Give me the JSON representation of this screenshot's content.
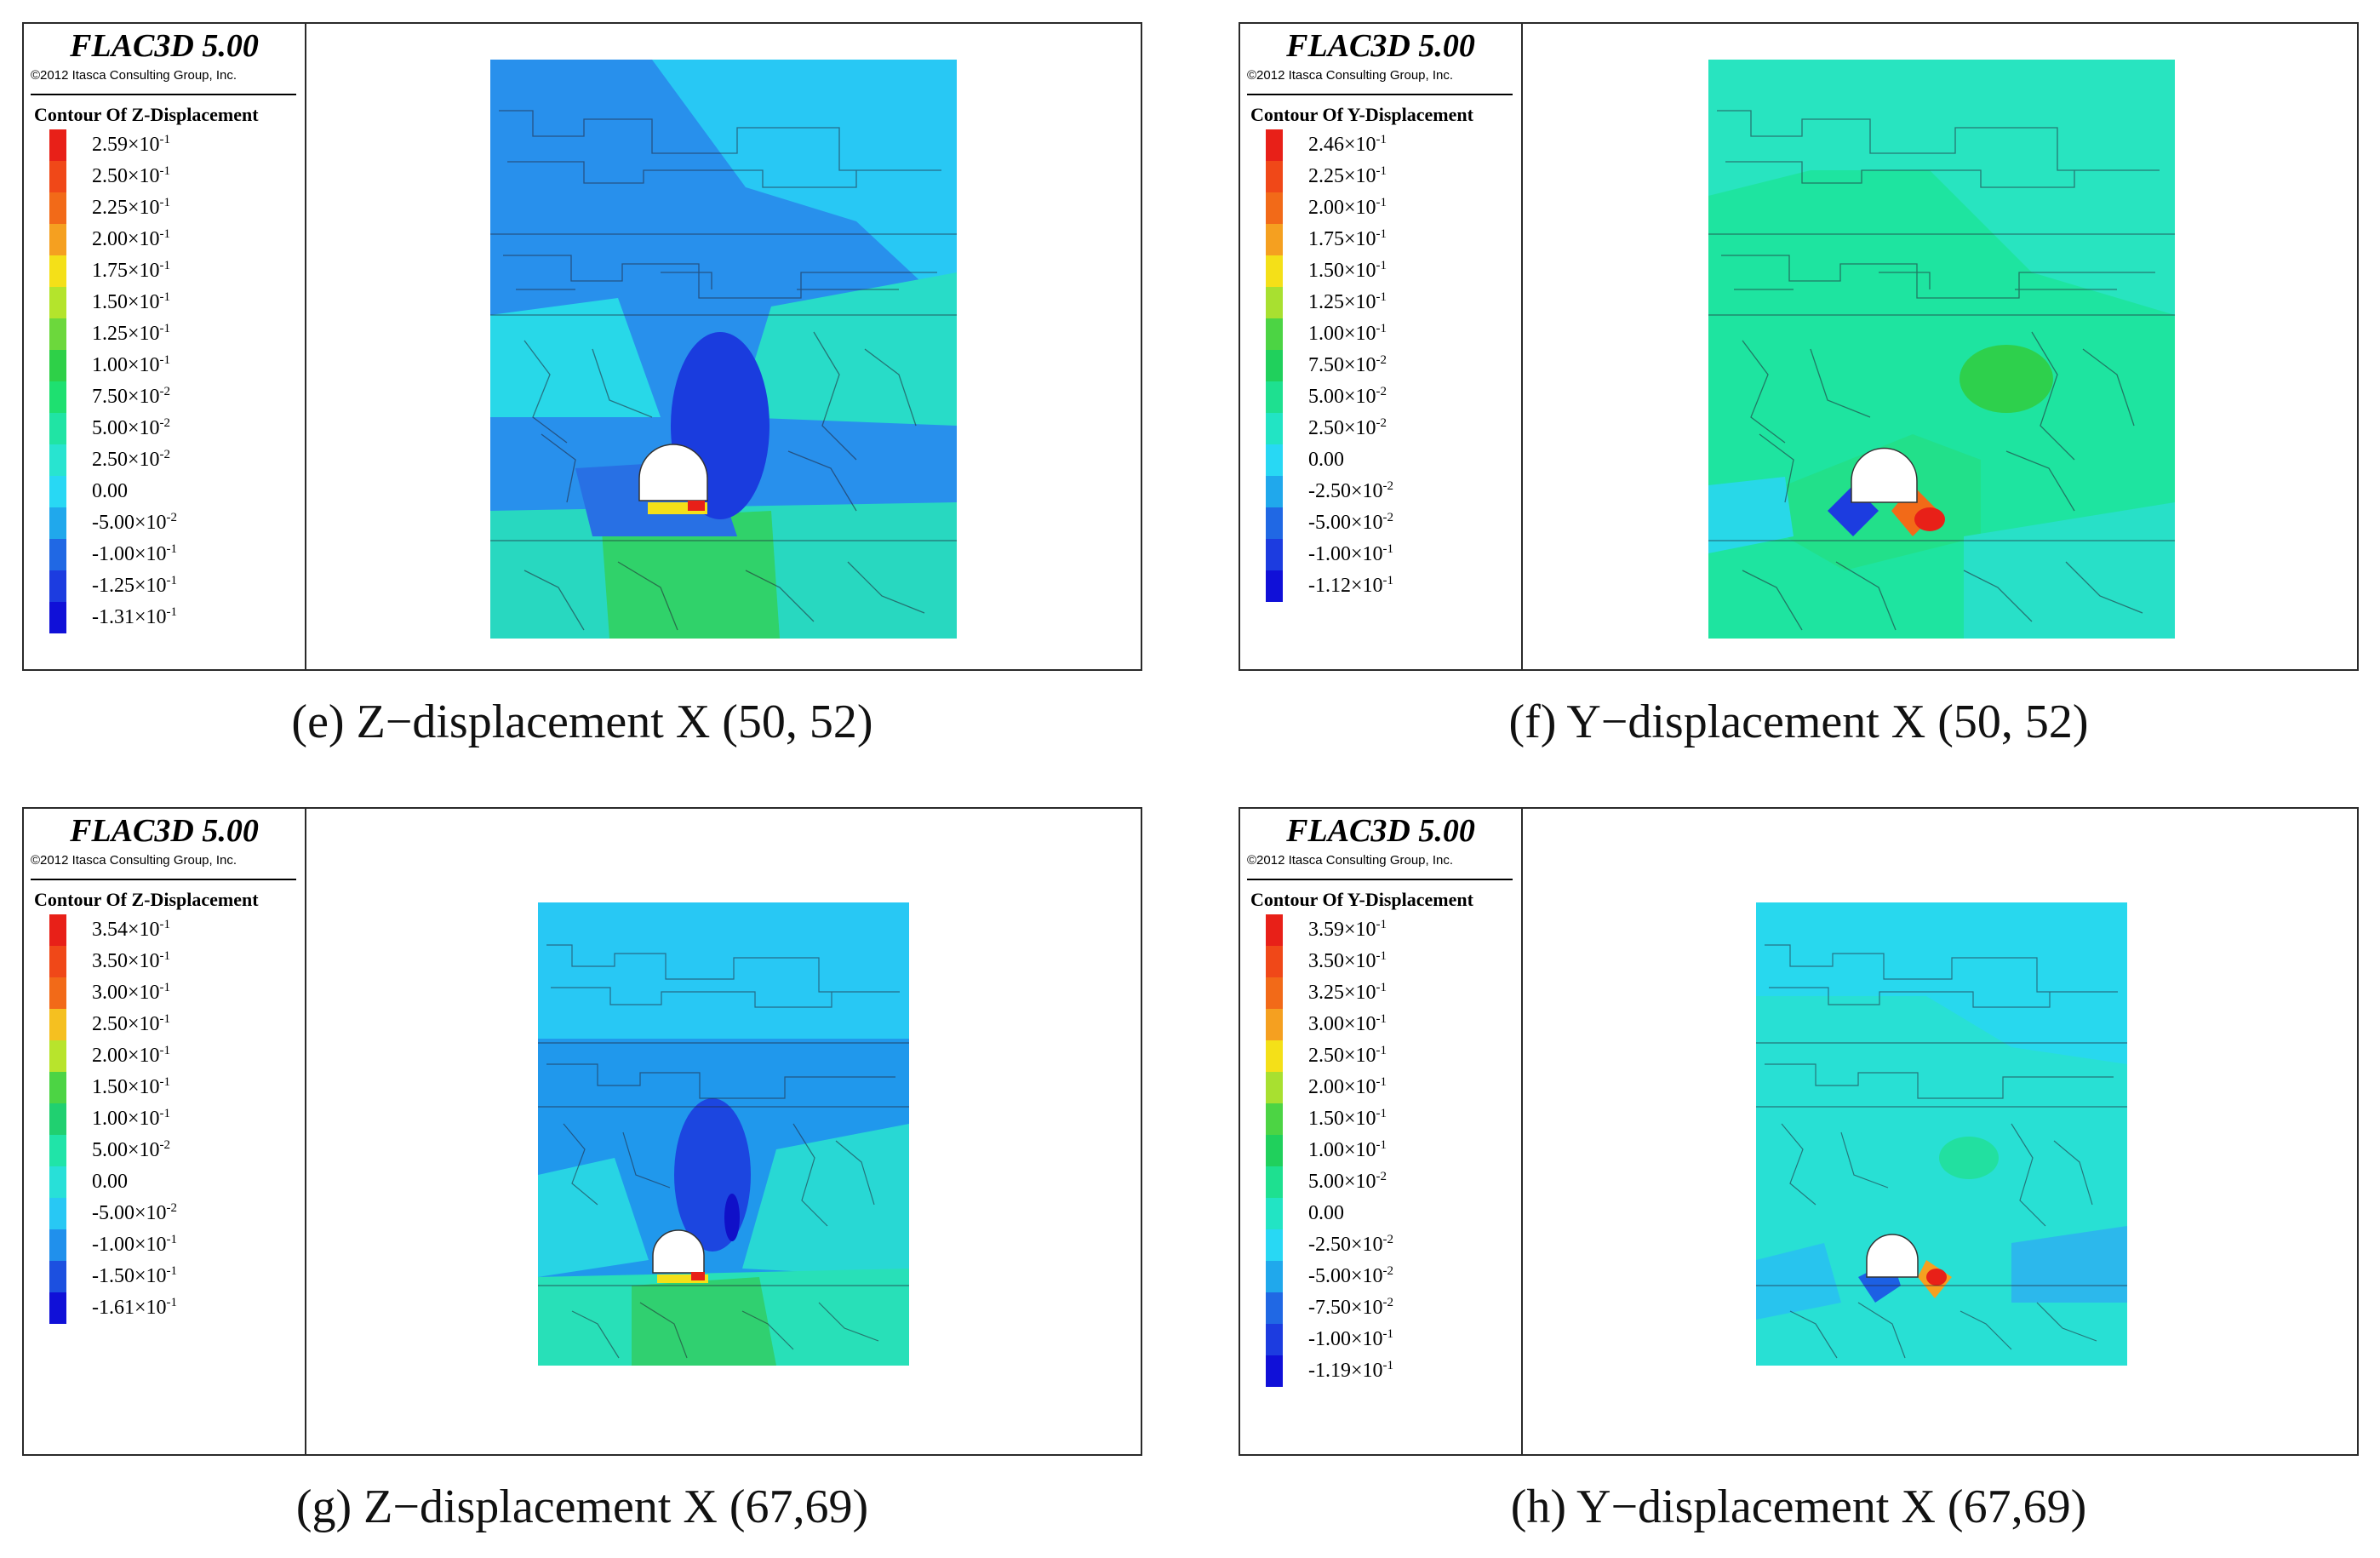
{
  "app": {
    "title": "FLAC3D 5.00",
    "copyright": "©2012 Itasca Consulting Group, Inc."
  },
  "panels": [
    {
      "contour_title": "Contour Of Z-Displacement",
      "caption": "(e) Z−displacement X (50, 52)",
      "legend": [
        {
          "mant": "2.59×10",
          "exp": "-1",
          "color": "#e82018"
        },
        {
          "mant": "2.50×10",
          "exp": "-1",
          "color": "#f04818"
        },
        {
          "mant": "2.25×10",
          "exp": "-1",
          "color": "#f26a18"
        },
        {
          "mant": "2.00×10",
          "exp": "-1",
          "color": "#f5a020"
        },
        {
          "mant": "1.75×10",
          "exp": "-1",
          "color": "#f4e018"
        },
        {
          "mant": "1.50×10",
          "exp": "-1",
          "color": "#b4e42c"
        },
        {
          "mant": "1.25×10",
          "exp": "-1",
          "color": "#6cd83c"
        },
        {
          "mant": "1.00×10",
          "exp": "-1",
          "color": "#2ed048"
        },
        {
          "mant": "7.50×10",
          "exp": "-2",
          "color": "#1ee070"
        },
        {
          "mant": "5.00×10",
          "exp": "-2",
          "color": "#20e4a4"
        },
        {
          "mant": "2.50×10",
          "exp": "-2",
          "color": "#28e4d0"
        },
        {
          "mant": "0.00",
          "exp": "",
          "color": "#28d8f4"
        },
        {
          "mant": "-5.00×10",
          "exp": "-2",
          "color": "#20a8ec"
        },
        {
          "mant": "-1.00×10",
          "exp": "-1",
          "color": "#2068e4"
        },
        {
          "mant": "-1.25×10",
          "exp": "-1",
          "color": "#1c3ce0"
        },
        {
          "mant": "-1.31×10",
          "exp": "-1",
          "color": "#1010d8"
        }
      ]
    },
    {
      "contour_title": "Contour Of Y-Displacement",
      "caption": "(f) Y−displacement X (50, 52)",
      "legend": [
        {
          "mant": "2.46×10",
          "exp": "-1",
          "color": "#e82018"
        },
        {
          "mant": "2.25×10",
          "exp": "-1",
          "color": "#f04818"
        },
        {
          "mant": "2.00×10",
          "exp": "-1",
          "color": "#f26a18"
        },
        {
          "mant": "1.75×10",
          "exp": "-1",
          "color": "#f5a020"
        },
        {
          "mant": "1.50×10",
          "exp": "-1",
          "color": "#f4e018"
        },
        {
          "mant": "1.25×10",
          "exp": "-1",
          "color": "#a8e030"
        },
        {
          "mant": "1.00×10",
          "exp": "-1",
          "color": "#4cd444"
        },
        {
          "mant": "7.50×10",
          "exp": "-2",
          "color": "#20d05c"
        },
        {
          "mant": "5.00×10",
          "exp": "-2",
          "color": "#1ee090"
        },
        {
          "mant": "2.50×10",
          "exp": "-2",
          "color": "#22e4c4"
        },
        {
          "mant": "0.00",
          "exp": "",
          "color": "#28d8f4"
        },
        {
          "mant": "-2.50×10",
          "exp": "-2",
          "color": "#20a8ec"
        },
        {
          "mant": "-5.00×10",
          "exp": "-2",
          "color": "#2068e4"
        },
        {
          "mant": "-1.00×10",
          "exp": "-1",
          "color": "#1c3ce0"
        },
        {
          "mant": "-1.12×10",
          "exp": "-1",
          "color": "#1010d8"
        }
      ]
    },
    {
      "contour_title": "Contour Of Z-Displacement",
      "caption": "(g) Z−displacement X (67,69)",
      "legend": [
        {
          "mant": "3.54×10",
          "exp": "-1",
          "color": "#e82018"
        },
        {
          "mant": "3.50×10",
          "exp": "-1",
          "color": "#f04818"
        },
        {
          "mant": "3.00×10",
          "exp": "-1",
          "color": "#f26a18"
        },
        {
          "mant": "2.50×10",
          "exp": "-1",
          "color": "#f5c020"
        },
        {
          "mant": "2.00×10",
          "exp": "-1",
          "color": "#b8e42c"
        },
        {
          "mant": "1.50×10",
          "exp": "-1",
          "color": "#4cd444"
        },
        {
          "mant": "1.00×10",
          "exp": "-1",
          "color": "#20d070"
        },
        {
          "mant": "5.00×10",
          "exp": "-2",
          "color": "#20e4a8"
        },
        {
          "mant": "0.00",
          "exp": "",
          "color": "#28e0d8"
        },
        {
          "mant": "-5.00×10",
          "exp": "-2",
          "color": "#28c8f4"
        },
        {
          "mant": "-1.00×10",
          "exp": "-1",
          "color": "#2090ec"
        },
        {
          "mant": "-1.50×10",
          "exp": "-1",
          "color": "#1c50e0"
        },
        {
          "mant": "-1.61×10",
          "exp": "-1",
          "color": "#1010d8"
        }
      ]
    },
    {
      "contour_title": "Contour Of Y-Displacement",
      "caption": "(h) Y−displacement X (67,69)",
      "legend": [
        {
          "mant": "3.59×10",
          "exp": "-1",
          "color": "#e82018"
        },
        {
          "mant": "3.50×10",
          "exp": "-1",
          "color": "#f04818"
        },
        {
          "mant": "3.25×10",
          "exp": "-1",
          "color": "#f26a18"
        },
        {
          "mant": "3.00×10",
          "exp": "-1",
          "color": "#f5a020"
        },
        {
          "mant": "2.50×10",
          "exp": "-1",
          "color": "#f4e018"
        },
        {
          "mant": "2.00×10",
          "exp": "-1",
          "color": "#a8e030"
        },
        {
          "mant": "1.50×10",
          "exp": "-1",
          "color": "#4cd444"
        },
        {
          "mant": "1.00×10",
          "exp": "-1",
          "color": "#20d05c"
        },
        {
          "mant": "5.00×10",
          "exp": "-2",
          "color": "#1ee090"
        },
        {
          "mant": "0.00",
          "exp": "",
          "color": "#22e4c4"
        },
        {
          "mant": "-2.50×10",
          "exp": "-2",
          "color": "#28d8f4"
        },
        {
          "mant": "-5.00×10",
          "exp": "-2",
          "color": "#20a8ec"
        },
        {
          "mant": "-7.50×10",
          "exp": "-2",
          "color": "#2068e4"
        },
        {
          "mant": "-1.00×10",
          "exp": "-1",
          "color": "#1c3ce0"
        },
        {
          "mant": "-1.19×10",
          "exp": "-1",
          "color": "#1010d8"
        }
      ]
    }
  ]
}
